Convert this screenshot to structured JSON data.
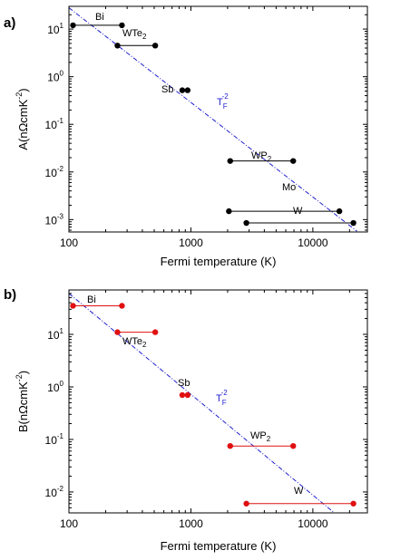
{
  "chart_data": [
    {
      "type": "scatter",
      "panel_label": "a)",
      "xlabel": "Fermi temperature (K)",
      "ylabel": "A(nΩcmK",
      "ylabel_sup": "-2",
      "ylabel_close": ")",
      "x_scale": "log",
      "y_scale": "log",
      "xlim": [
        100,
        28000
      ],
      "ylim": [
        0.00055,
        30
      ],
      "x_ticks": [
        100,
        1000,
        10000
      ],
      "x_tick_labels": [
        "100",
        "1000",
        "10000"
      ],
      "y_ticks": [
        0.001,
        0.01,
        0.1,
        1,
        10
      ],
      "y_tick_labels": [
        {
          "base": "10",
          "exp": "-3"
        },
        {
          "base": "10",
          "exp": "-2"
        },
        {
          "base": "10",
          "exp": "-1"
        },
        {
          "base": "10",
          "exp": "0"
        },
        {
          "base": "10",
          "exp": "1"
        }
      ],
      "marker_color": "#000000",
      "line_color": "#000000",
      "materials": [
        {
          "name": "Bi",
          "name_sub": "",
          "x": [
            108,
            272
          ],
          "y": 12
        },
        {
          "name": "WTe",
          "name_sub": "2",
          "x": [
            250,
            510
          ],
          "y": 4.5
        },
        {
          "name": "Sb",
          "name_sub": "",
          "x": [
            850,
            940
          ],
          "y": 0.52
        },
        {
          "name": "WP",
          "name_sub": "2",
          "x": [
            2100,
            6900
          ],
          "y": 0.017
        },
        {
          "name": "Mo",
          "name_sub": "",
          "x": [
            2050,
            16500
          ],
          "y": 0.0015
        },
        {
          "name": "W",
          "name_sub": "",
          "x": [
            2850,
            21500
          ],
          "y": 0.00085
        }
      ],
      "guide": {
        "label": "T",
        "label_sub": "F",
        "label_sup": "-2",
        "color": "#1f1fd0",
        "x": [
          100,
          23000
        ],
        "y": [
          28,
          0.00057
        ]
      }
    },
    {
      "type": "scatter",
      "panel_label": "b)",
      "xlabel": "Fermi temperature (K)",
      "ylabel": "B(nΩcmK",
      "ylabel_sup": "-2",
      "ylabel_close": ")",
      "x_scale": "log",
      "y_scale": "log",
      "xlim": [
        100,
        28000
      ],
      "ylim": [
        0.004,
        70
      ],
      "x_ticks": [
        100,
        1000,
        10000
      ],
      "x_tick_labels": [
        "100",
        "1000",
        "10000"
      ],
      "y_ticks": [
        0.01,
        0.1,
        1,
        10
      ],
      "y_tick_labels": [
        {
          "base": "10",
          "exp": "-2"
        },
        {
          "base": "10",
          "exp": "-1"
        },
        {
          "base": "10",
          "exp": "0"
        },
        {
          "base": "10",
          "exp": "1"
        }
      ],
      "marker_color": "#e01010",
      "line_color": "#e01010",
      "materials": [
        {
          "name": "Bi",
          "name_sub": "",
          "x": [
            108,
            272
          ],
          "y": 35
        },
        {
          "name": "WTe",
          "name_sub": "2",
          "x": [
            250,
            510
          ],
          "y": 11
        },
        {
          "name": "Sb",
          "name_sub": "",
          "x": [
            850,
            940
          ],
          "y": 0.7
        },
        {
          "name": "WP",
          "name_sub": "2",
          "x": [
            2100,
            6900
          ],
          "y": 0.075
        },
        {
          "name": "W",
          "name_sub": "",
          "x": [
            2850,
            21500
          ],
          "y": 0.006
        }
      ],
      "guide": {
        "label": "T",
        "label_sub": "F",
        "label_sup": "-2",
        "color": "#1f1fd0",
        "x": [
          100,
          15000
        ],
        "y": [
          60,
          0.004
        ]
      }
    }
  ]
}
